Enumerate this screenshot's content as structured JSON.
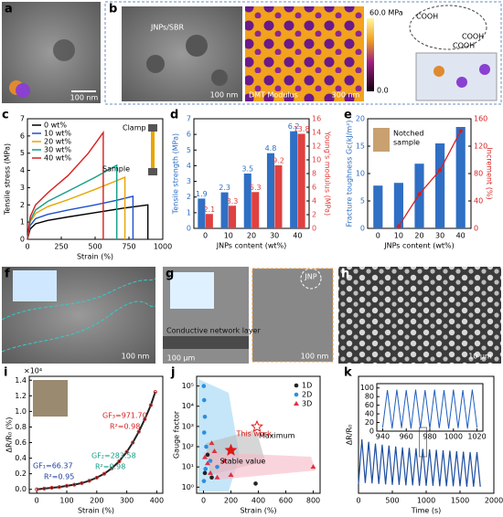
{
  "images": {
    "a": {
      "letter": "a",
      "scale_bar": "100 nm"
    },
    "b": {
      "letter": "b",
      "tem_label": "JNPs/SBR",
      "tem_scale": "100 nm",
      "afm_label": "DMT Modulus",
      "afm_scale": "300 nm",
      "colorbar_max": "60.0 MPa",
      "colorbar_min": "0.0",
      "groups": [
        "COOH",
        "COOH",
        "COOH"
      ]
    },
    "f": {
      "letter": "f",
      "scale_bar": "100 nm"
    },
    "g": {
      "letter": "g",
      "layer_label": "Conductive network layer",
      "scale_left": "100 μm",
      "jnp_label": "JNP",
      "scale_right": "100 nm"
    },
    "h": {
      "letter": "h",
      "scale_bar": "10 μm"
    }
  },
  "chart_data": [
    {
      "type": "line",
      "panel": "c",
      "x_label": "Strain (%)",
      "y_label": "Tensile stress (MPa)",
      "xlim": [
        0,
        1000
      ],
      "xticks": [
        0,
        250,
        500,
        750,
        1000
      ],
      "ylim": [
        0,
        7
      ],
      "yticks": [
        0,
        1,
        2,
        3,
        4,
        5,
        6,
        7
      ],
      "annotations": [
        "Clamp",
        "Sample"
      ],
      "series": [
        {
          "name": "0 wt%",
          "color": "#000000",
          "x": [
            0,
            20,
            60,
            150,
            300,
            500,
            700,
            890,
            890
          ],
          "values": [
            0,
            0.6,
            0.9,
            1.1,
            1.3,
            1.55,
            1.8,
            2.0,
            0
          ]
        },
        {
          "name": "10 wt%",
          "color": "#1f4fd0",
          "x": [
            0,
            20,
            60,
            150,
            300,
            500,
            650,
            780,
            780
          ],
          "values": [
            0,
            0.8,
            1.2,
            1.45,
            1.7,
            2.0,
            2.25,
            2.5,
            0
          ]
        },
        {
          "name": "20 wt%",
          "color": "#e8a400",
          "x": [
            0,
            20,
            60,
            150,
            300,
            500,
            720,
            720
          ],
          "values": [
            0,
            1.0,
            1.5,
            1.9,
            2.3,
            2.9,
            3.6,
            0
          ]
        },
        {
          "name": "30 wt%",
          "color": "#169e86",
          "x": [
            0,
            20,
            60,
            150,
            300,
            500,
            660,
            660
          ],
          "values": [
            0,
            1.1,
            1.7,
            2.2,
            2.8,
            3.6,
            4.3,
            0
          ]
        },
        {
          "name": "40 wt%",
          "color": "#d81e1e",
          "x": [
            0,
            20,
            60,
            150,
            300,
            450,
            560,
            560
          ],
          "values": [
            0,
            1.3,
            2.0,
            2.7,
            3.7,
            5.0,
            6.2,
            0
          ]
        }
      ]
    },
    {
      "type": "bar",
      "panel": "d",
      "x_label": "JNPs content (wt%)",
      "y_label": "Tensile strength (MPa)",
      "y2_label": "Young's modulus (MPa)",
      "data_labels": true,
      "categories": [
        "0",
        "10",
        "20",
        "30",
        "40"
      ],
      "ylim": [
        0,
        7
      ],
      "yticks": [
        0,
        1,
        2,
        3,
        4,
        5,
        6,
        7
      ],
      "y2lim": [
        0,
        16
      ],
      "y2ticks": [
        0,
        2,
        4,
        6,
        8,
        10,
        12,
        14,
        16
      ],
      "series": [
        {
          "color": "#2f6fc4",
          "axis": "y",
          "values": [
            1.9,
            2.3,
            3.5,
            4.8,
            6.2
          ]
        },
        {
          "color": "#e04040",
          "axis": "y2",
          "values": [
            2.1,
            3.3,
            5.3,
            9.2,
            13.8
          ]
        }
      ]
    },
    {
      "type": "bar",
      "panel": "e",
      "x_label": "JNPs content (wt%)",
      "y_label": "Fracture toughness Gc(kJ/m²)",
      "y2_label": "Increment (%)",
      "annotations": [
        "Notched",
        "sample"
      ],
      "categories": [
        "0",
        "10",
        "20",
        "30",
        "40"
      ],
      "ylim": [
        0,
        20
      ],
      "yticks": [
        0,
        5,
        10,
        15,
        20
      ],
      "y2lim": [
        0,
        160
      ],
      "y2ticks": [
        0,
        40,
        80,
        120,
        160
      ],
      "series": [
        {
          "color": "#2f6fc4",
          "axis": "y",
          "values": [
            7.8,
            8.3,
            11.8,
            15.5,
            18.5
          ]
        },
        {
          "color": "#d81e1e",
          "axis": "y2",
          "mark": "line",
          "values": [
            null,
            3,
            50,
            85,
            142
          ]
        }
      ]
    },
    {
      "type": "line",
      "panel": "i",
      "x_label": "Strain (%)",
      "y_label": "ΔR/R₀ (%)",
      "multiplier": "×10⁴",
      "xlim": [
        -25,
        420
      ],
      "xticks": [
        0,
        100,
        200,
        300,
        400
      ],
      "ylim": [
        -0.05,
        1.45
      ],
      "yticks": [
        {
          "value": 0,
          "label": "0.0"
        },
        0.2,
        0.4,
        0.6,
        0.8,
        {
          "value": 1,
          "label": "1.0"
        },
        1.2,
        1.4
      ],
      "annotations": [
        {
          "text": "GF₁=66.37",
          "color": "#1f3f9f"
        },
        {
          "text": "R²=0.95",
          "color": "#1f3f9f"
        },
        {
          "text": "GF₂=283.58",
          "color": "#169e86"
        },
        {
          "text": "R²=0.98",
          "color": "#169e86"
        },
        {
          "text": "GF₃=971.70",
          "color": "#d81e1e"
        },
        {
          "text": "R²=0.98",
          "color": "#d81e1e"
        }
      ],
      "series": [
        {
          "color": "#222222",
          "x": [
            0,
            25,
            50,
            75,
            100,
            125,
            150,
            175,
            200,
            225,
            250,
            275,
            300,
            320,
            340,
            360,
            380,
            395
          ],
          "values": [
            0,
            0.01,
            0.02,
            0.03,
            0.045,
            0.06,
            0.08,
            0.11,
            0.15,
            0.2,
            0.27,
            0.36,
            0.48,
            0.6,
            0.74,
            0.9,
            1.08,
            1.25
          ]
        }
      ]
    },
    {
      "type": "scatter",
      "panel": "j",
      "x_label": "Strain (%)",
      "y_label": "Gauge factor",
      "log": true,
      "xlim": [
        -50,
        850
      ],
      "xticks": [
        0,
        200,
        400,
        600,
        800
      ],
      "ylim": [
        0.5,
        300000
      ],
      "yticks": [
        {
          "value": 1,
          "label": "10⁰"
        },
        {
          "value": 10,
          "label": "10¹"
        },
        {
          "value": 100,
          "label": "10²"
        },
        {
          "value": 1000,
          "label": "10³"
        },
        {
          "value": 10000,
          "label": "10⁴"
        },
        {
          "value": 100000,
          "label": "10⁵"
        }
      ],
      "series": [
        {
          "name": "1D",
          "color": "#222222",
          "marker": "circle",
          "x": [
            10,
            30,
            60,
            380
          ],
          "values": [
            5,
            40,
            3,
            1.5
          ]
        },
        {
          "name": "2D",
          "color": "#2a8fe0",
          "marker": "circle",
          "x": [
            2,
            5,
            10,
            5,
            20,
            50,
            100,
            3,
            15
          ],
          "values": [
            100000,
            20000,
            3000,
            500,
            100,
            20,
            10,
            2,
            8
          ]
        },
        {
          "name": "3D",
          "color": "#e03040",
          "marker": "triangle",
          "x": [
            10,
            30,
            50,
            80,
            150,
            200,
            60,
            100,
            800
          ],
          "values": [
            30,
            15,
            5,
            60,
            20,
            4,
            150,
            3,
            10
          ]
        }
      ],
      "highlight": {
        "name": "This work",
        "color": "#e01818",
        "x": [
          200,
          390
        ],
        "values": [
          66.37,
          971.7
        ],
        "point_labels": [
          "Stable value",
          "Maximum"
        ]
      }
    },
    {
      "type": "line",
      "panel": "k",
      "x_label": "Time (s)",
      "y_label": "ΔR/R₀",
      "xlim": [
        0,
        2000
      ],
      "xticks": [
        0,
        500,
        1000,
        1500,
        2000
      ],
      "ylim": [
        0,
        250
      ],
      "series": [
        {
          "color": "#1f4f9f",
          "x": [
            0,
            50,
            100,
            150,
            200,
            250,
            300,
            350,
            400,
            450,
            500,
            550,
            600,
            650,
            700,
            750,
            800,
            850,
            900,
            950,
            1000,
            1050,
            1100,
            1150,
            1200,
            1250,
            1300,
            1350,
            1400,
            1450,
            1500,
            1550,
            1600,
            1650,
            1700,
            1750,
            1800
          ],
          "values": [
            20,
            115,
            22,
            110,
            21,
            106,
            20,
            104,
            19,
            102,
            18,
            100,
            18,
            98,
            17,
            97,
            17,
            96,
            16,
            95,
            16,
            94,
            16,
            93,
            15,
            92,
            15,
            91,
            15,
            90,
            15,
            89,
            14,
            88,
            14,
            88,
            14
          ]
        }
      ]
    },
    {
      "type": "line",
      "xlim": [
        935,
        1025
      ],
      "xticks": [
        940,
        960,
        980,
        1000,
        1020
      ],
      "ylim": [
        0,
        110
      ],
      "yticks": [
        0,
        20,
        40,
        60,
        80,
        100
      ],
      "series": [
        {
          "color": "#1f5fbf",
          "x": [
            940,
            944,
            948,
            952,
            956,
            960,
            964,
            968,
            972,
            976,
            980,
            984,
            988,
            992,
            996,
            1000,
            1004,
            1008,
            1012,
            1016,
            1020
          ],
          "values": [
            8,
            95,
            6,
            96,
            7,
            95,
            6,
            96,
            7,
            95,
            6,
            96,
            7,
            95,
            6,
            96,
            7,
            95,
            6,
            96,
            8
          ]
        }
      ]
    }
  ]
}
